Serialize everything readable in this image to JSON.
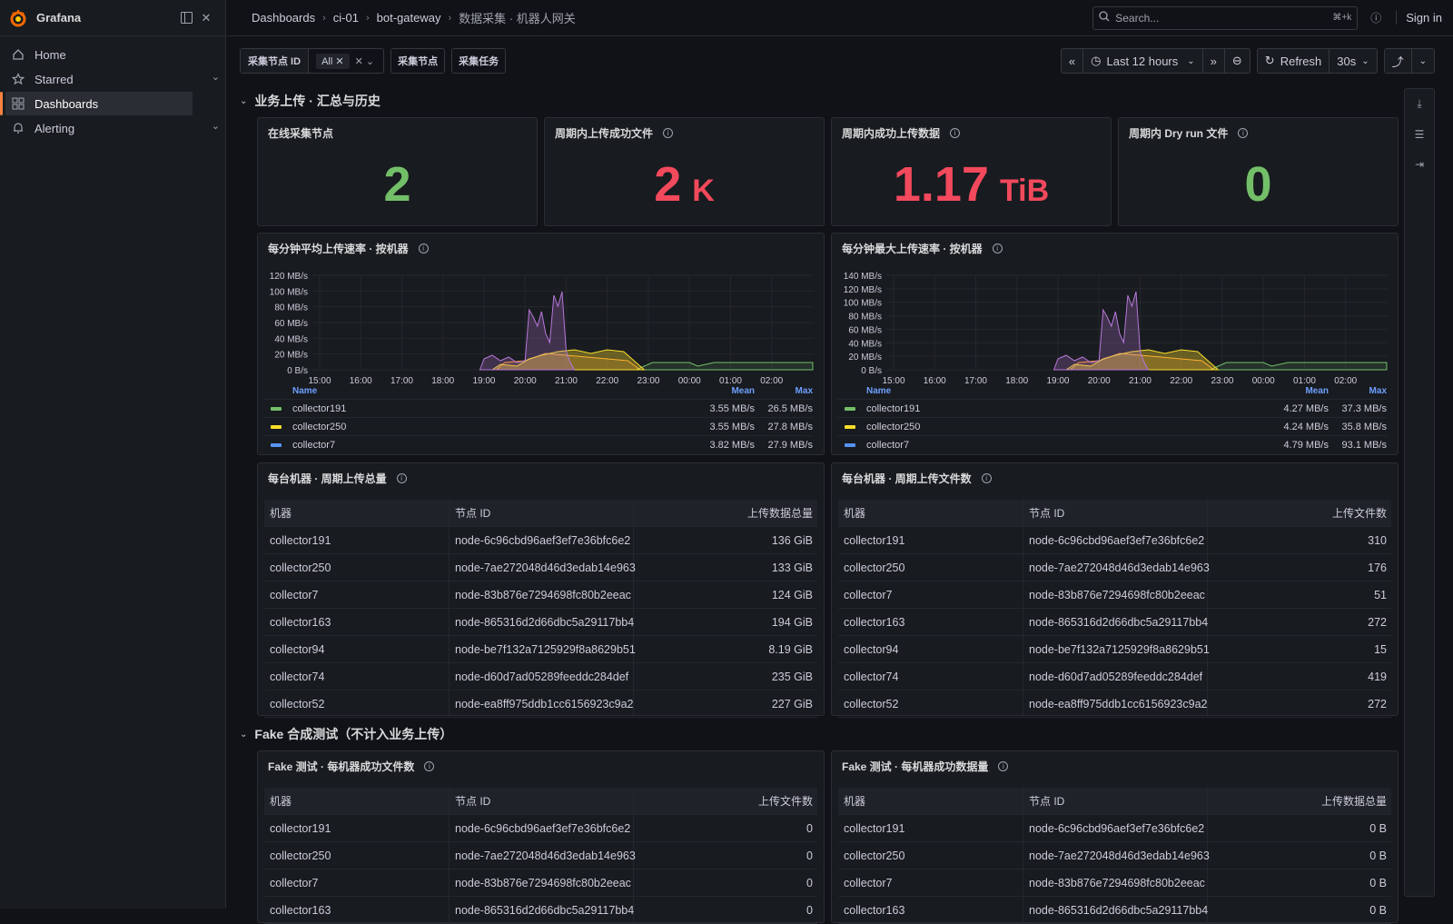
{
  "app": {
    "brand": "Grafana"
  },
  "sidebar": {
    "items": [
      {
        "label": "Home",
        "icon": "home-icon",
        "active": false,
        "chevron": false
      },
      {
        "label": "Starred",
        "icon": "star-icon",
        "active": false,
        "chevron": true
      },
      {
        "label": "Dashboards",
        "icon": "dashboards-icon",
        "active": true,
        "chevron": false
      },
      {
        "label": "Alerting",
        "icon": "bell-icon",
        "active": false,
        "chevron": true
      }
    ]
  },
  "breadcrumbs": [
    "Dashboards",
    "ci-01",
    "bot-gateway",
    "数据采集 · 机器人网关"
  ],
  "search": {
    "placeholder": "Search...",
    "shortcut": "⌘+k"
  },
  "signin": "Sign in",
  "controls": {
    "variable_label": "采集节点 ID",
    "variable_value": "All",
    "link1": "采集节点",
    "link2": "采集任务",
    "time_range": "Last 12 hours",
    "refresh": "Refresh",
    "interval": "30s"
  },
  "rows": {
    "business": "业务上传 · 汇总与历史",
    "fake": "Fake 合成测试（不计入业务上传）"
  },
  "stats": [
    {
      "title": "在线采集节点",
      "value": "2",
      "unit": "",
      "color": "#73bf69",
      "info": false
    },
    {
      "title": "周期内上传成功文件",
      "value": "2",
      "unit": "K",
      "color": "#f2495c",
      "info": true
    },
    {
      "title": "周期内成功上传数据",
      "value": "1.17",
      "unit": "TiB",
      "color": "#f2495c",
      "info": true
    },
    {
      "title": "周期内 Dry run 文件",
      "value": "0",
      "unit": "",
      "color": "#73bf69",
      "info": true
    }
  ],
  "timeseries": {
    "avg": {
      "title": "每分钟平均上传速率 · 按机器",
      "y_ticks": [
        "120 MB/s",
        "100 MB/s",
        "80 MB/s",
        "60 MB/s",
        "40 MB/s",
        "20 MB/s",
        "0 B/s"
      ],
      "x_ticks": [
        "15:00",
        "16:00",
        "17:00",
        "18:00",
        "19:00",
        "20:00",
        "21:00",
        "22:00",
        "23:00",
        "00:00",
        "01:00",
        "02:00"
      ],
      "legend_headers": {
        "name": "Name",
        "mean": "Mean",
        "max": "Max"
      },
      "legend": [
        {
          "name": "collector191",
          "mean": "3.55 MB/s",
          "max": "26.5 MB/s",
          "color": "#73bf69"
        },
        {
          "name": "collector250",
          "mean": "3.55 MB/s",
          "max": "27.8 MB/s",
          "color": "#fade2a"
        },
        {
          "name": "collector7",
          "mean": "3.82 MB/s",
          "max": "27.9 MB/s",
          "color": "#5794f2"
        }
      ]
    },
    "max": {
      "title": "每分钟最大上传速率 · 按机器",
      "y_ticks": [
        "140 MB/s",
        "120 MB/s",
        "100 MB/s",
        "80 MB/s",
        "60 MB/s",
        "40 MB/s",
        "20 MB/s",
        "0 B/s"
      ],
      "x_ticks": [
        "15:00",
        "16:00",
        "17:00",
        "18:00",
        "19:00",
        "20:00",
        "21:00",
        "22:00",
        "23:00",
        "00:00",
        "01:00",
        "02:00"
      ],
      "legend_headers": {
        "name": "Name",
        "mean": "Mean",
        "max": "Max"
      },
      "legend": [
        {
          "name": "collector191",
          "mean": "4.27 MB/s",
          "max": "37.3 MB/s",
          "color": "#73bf69"
        },
        {
          "name": "collector250",
          "mean": "4.24 MB/s",
          "max": "35.8 MB/s",
          "color": "#fade2a"
        },
        {
          "name": "collector7",
          "mean": "4.79 MB/s",
          "max": "93.1 MB/s",
          "color": "#5794f2"
        }
      ]
    }
  },
  "tables": [
    {
      "title": "每台机器 · 周期上传总量",
      "headers": [
        "机器",
        "节点 ID",
        "上传数据总量"
      ],
      "rows": [
        [
          "collector191",
          "node-6c96cbd96aef3ef7e36bfc6e2",
          "136 GiB"
        ],
        [
          "collector250",
          "node-7ae272048d46d3edab14e963",
          "133 GiB"
        ],
        [
          "collector7",
          "node-83b876e7294698fc80b2eeac",
          "124 GiB"
        ],
        [
          "collector163",
          "node-865316d2d66dbc5a29117bb4",
          "194 GiB"
        ],
        [
          "collector94",
          "node-be7f132a7125929f8a8629b51",
          "8.19 GiB"
        ],
        [
          "collector74",
          "node-d60d7ad05289feeddc284def",
          "235 GiB"
        ],
        [
          "collector52",
          "node-ea8ff975ddb1cc6156923c9a2",
          "227 GiB"
        ]
      ]
    },
    {
      "title": "每台机器 · 周期上传文件数",
      "headers": [
        "机器",
        "节点 ID",
        "上传文件数"
      ],
      "rows": [
        [
          "collector191",
          "node-6c96cbd96aef3ef7e36bfc6e2",
          "310"
        ],
        [
          "collector250",
          "node-7ae272048d46d3edab14e963",
          "176"
        ],
        [
          "collector7",
          "node-83b876e7294698fc80b2eeac",
          "51"
        ],
        [
          "collector163",
          "node-865316d2d66dbc5a29117bb4",
          "272"
        ],
        [
          "collector94",
          "node-be7f132a7125929f8a8629b51",
          "15"
        ],
        [
          "collector74",
          "node-d60d7ad05289feeddc284def",
          "419"
        ],
        [
          "collector52",
          "node-ea8ff975ddb1cc6156923c9a2",
          "272"
        ]
      ]
    },
    {
      "title": "Fake 测试 · 每机器成功文件数",
      "headers": [
        "机器",
        "节点 ID",
        "上传文件数"
      ],
      "rows": [
        [
          "collector191",
          "node-6c96cbd96aef3ef7e36bfc6e2",
          "0"
        ],
        [
          "collector250",
          "node-7ae272048d46d3edab14e963",
          "0"
        ],
        [
          "collector7",
          "node-83b876e7294698fc80b2eeac",
          "0"
        ],
        [
          "collector163",
          "node-865316d2d66dbc5a29117bb4",
          "0"
        ]
      ]
    },
    {
      "title": "Fake 测试 · 每机器成功数据量",
      "headers": [
        "机器",
        "节点 ID",
        "上传数据总量"
      ],
      "rows": [
        [
          "collector191",
          "node-6c96cbd96aef3ef7e36bfc6e2",
          "0 B"
        ],
        [
          "collector250",
          "node-7ae272048d46d3edab14e963",
          "0 B"
        ],
        [
          "collector7",
          "node-83b876e7294698fc80b2eeac",
          "0 B"
        ],
        [
          "collector163",
          "node-865316d2d66dbc5a29117bb4",
          "0 B"
        ]
      ]
    }
  ]
}
